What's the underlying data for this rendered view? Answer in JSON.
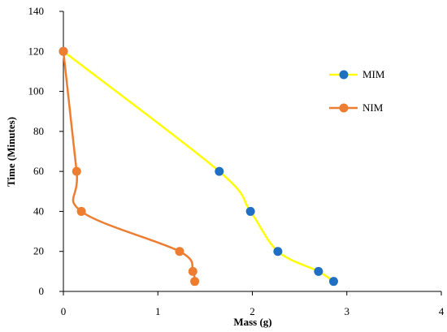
{
  "chart_data": {
    "type": "line",
    "title": "",
    "xlabel": "Mass (g)",
    "ylabel": "Time (Minutes)",
    "xlim": [
      0,
      4
    ],
    "ylim": [
      0,
      140
    ],
    "xticks": [
      0,
      1,
      2,
      3,
      4
    ],
    "yticks": [
      0,
      20,
      40,
      60,
      80,
      100,
      120,
      140
    ],
    "grid": false,
    "legend_position": "right",
    "series": [
      {
        "name": "MIM",
        "line_color": "#ffff00",
        "marker_color": "#1f6fc5",
        "x": [
          0,
          1.65,
          1.98,
          2.27,
          2.7,
          2.86
        ],
        "y": [
          120,
          60,
          40,
          20,
          10,
          5
        ]
      },
      {
        "name": "NIM",
        "line_color": "#ed7d31",
        "marker_color": "#ed7d31",
        "x": [
          0,
          0.14,
          0.19,
          1.23,
          1.37,
          1.39
        ],
        "y": [
          120,
          60,
          40,
          20,
          10,
          5
        ]
      }
    ]
  }
}
